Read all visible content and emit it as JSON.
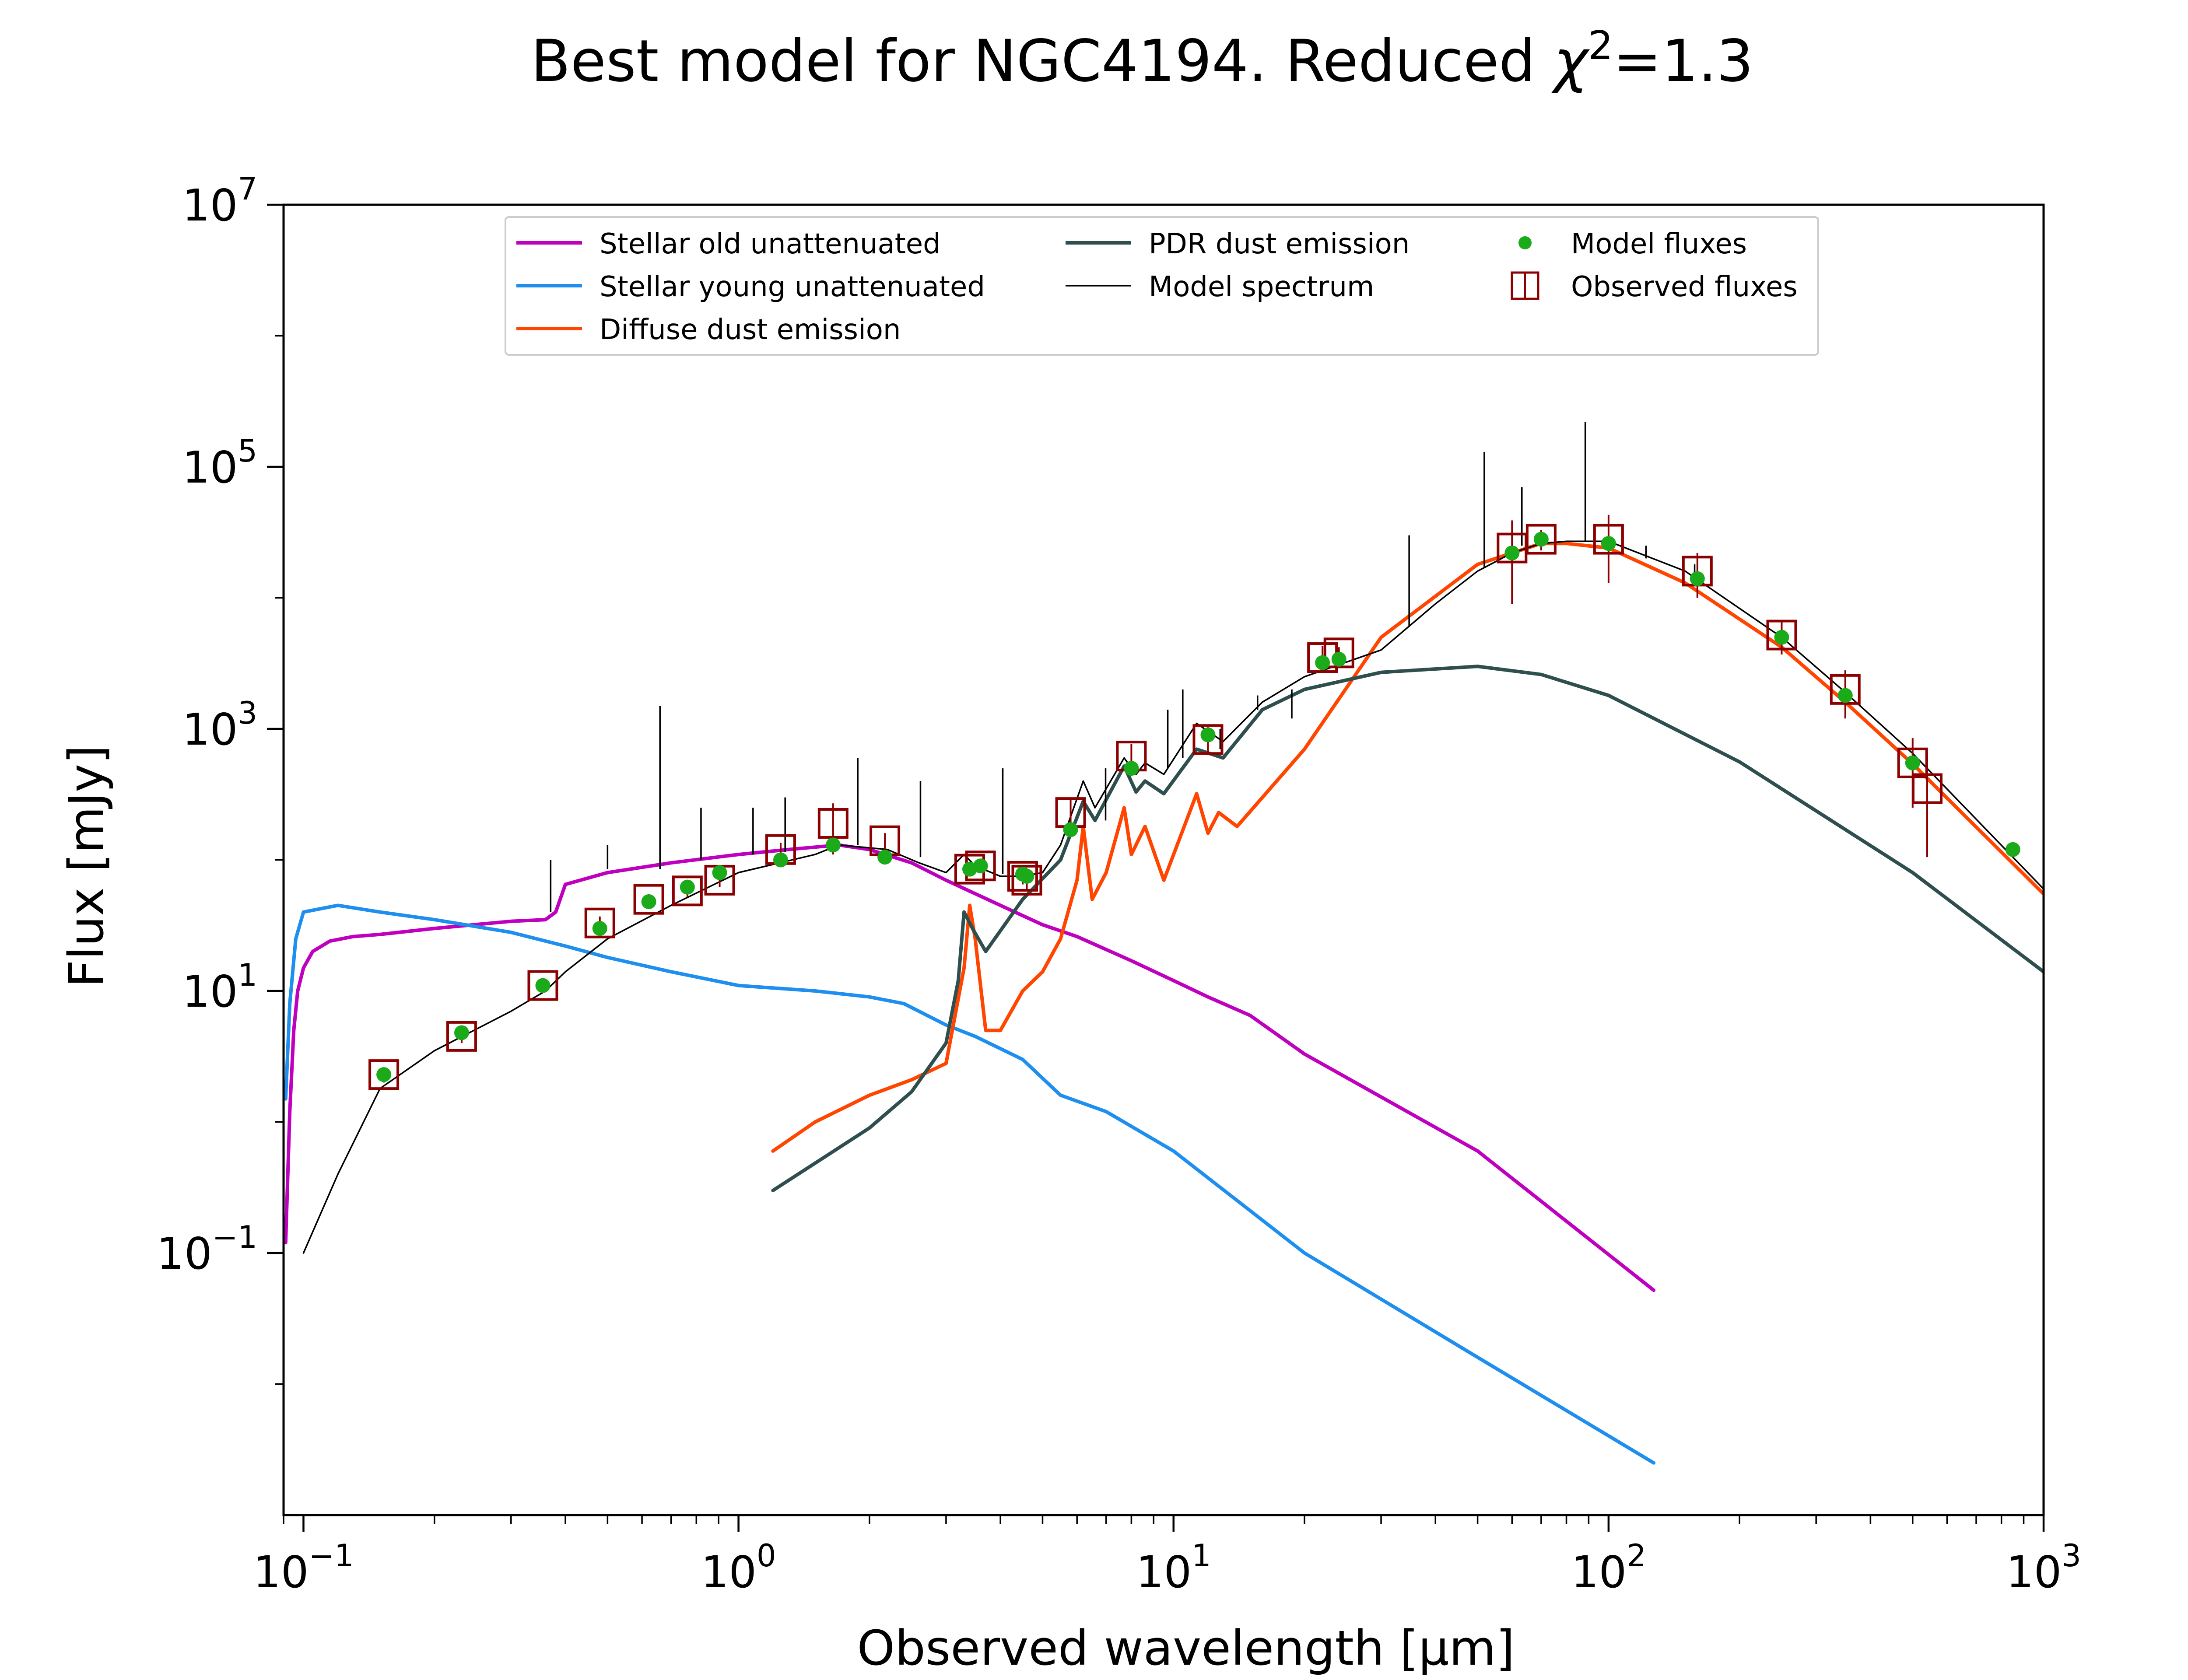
{
  "chart_data": {
    "type": "line",
    "title": "Best model for NGC4194. Reduced χ²=1.3",
    "title_parts": {
      "main": "Best model for NGC4194. Reduced ",
      "chi": "χ",
      "sup": "2",
      "rest": "=1.3"
    },
    "xlabel": "Observed wavelength [μm]",
    "ylabel": "Flux [mJy]",
    "x_scale": "log",
    "y_scale": "log",
    "xlim": [
      0.09,
      1000
    ],
    "ylim": [
      0.001,
      10000000
    ],
    "x_ticks": [
      {
        "base": "10",
        "exp": "−1",
        "value": 0.1
      },
      {
        "base": "10",
        "exp": "0",
        "value": 1
      },
      {
        "base": "10",
        "exp": "1",
        "value": 10
      },
      {
        "base": "10",
        "exp": "2",
        "value": 100
      },
      {
        "base": "10",
        "exp": "3",
        "value": 1000
      }
    ],
    "y_ticks": [
      {
        "base": "10",
        "exp": "−1",
        "value": 0.1
      },
      {
        "base": "10",
        "exp": "1",
        "value": 10
      },
      {
        "base": "10",
        "exp": "3",
        "value": 1000
      },
      {
        "base": "10",
        "exp": "5",
        "value": 100000
      },
      {
        "base": "10",
        "exp": "7",
        "value": 10000000
      }
    ],
    "grid": false,
    "legend_position": "top-center",
    "series": [
      {
        "name": "Stellar old unattenuated",
        "kind": "line",
        "color": "#bf00bf",
        "points": [
          [
            0.091,
            0.12
          ],
          [
            0.093,
            1.2
          ],
          [
            0.095,
            5
          ],
          [
            0.097,
            10
          ],
          [
            0.1,
            15
          ],
          [
            0.105,
            20
          ],
          [
            0.115,
            24
          ],
          [
            0.13,
            26
          ],
          [
            0.15,
            27
          ],
          [
            0.2,
            30
          ],
          [
            0.3,
            34
          ],
          [
            0.36,
            35
          ],
          [
            0.38,
            40
          ],
          [
            0.4,
            65
          ],
          [
            0.5,
            80
          ],
          [
            0.7,
            95
          ],
          [
            1.0,
            110
          ],
          [
            1.3,
            120
          ],
          [
            1.7,
            130
          ],
          [
            2.0,
            120
          ],
          [
            2.5,
            95
          ],
          [
            3.0,
            70
          ],
          [
            4.0,
            45
          ],
          [
            5.0,
            32
          ],
          [
            6.0,
            26
          ],
          [
            8.0,
            17
          ],
          [
            10.0,
            12
          ],
          [
            12.0,
            9
          ],
          [
            15.0,
            6.5
          ],
          [
            20.0,
            3.3
          ],
          [
            50.0,
            0.6
          ],
          [
            127,
            0.052
          ]
        ]
      },
      {
        "name": "Stellar young unattenuated",
        "kind": "line",
        "color": "#1f8fef",
        "points": [
          [
            0.091,
            1.5
          ],
          [
            0.093,
            8
          ],
          [
            0.096,
            25
          ],
          [
            0.1,
            40
          ],
          [
            0.12,
            45
          ],
          [
            0.15,
            40
          ],
          [
            0.2,
            35
          ],
          [
            0.3,
            28
          ],
          [
            0.4,
            22
          ],
          [
            0.5,
            18
          ],
          [
            0.7,
            14
          ],
          [
            1.0,
            11
          ],
          [
            1.5,
            10
          ],
          [
            2.0,
            9
          ],
          [
            2.4,
            8
          ],
          [
            3.0,
            5.5
          ],
          [
            3.5,
            4.5
          ],
          [
            4.5,
            3
          ],
          [
            5.5,
            1.6
          ],
          [
            7.0,
            1.2
          ],
          [
            10.0,
            0.6
          ],
          [
            20.0,
            0.1
          ],
          [
            50.0,
            0.016
          ],
          [
            127,
            0.0025
          ]
        ]
      },
      {
        "name": "Diffuse dust emission",
        "kind": "line",
        "color": "#ff4500",
        "points": [
          [
            1.2,
            0.6
          ],
          [
            1.5,
            1.0
          ],
          [
            2.0,
            1.6
          ],
          [
            2.5,
            2.1
          ],
          [
            3.0,
            2.8
          ],
          [
            3.3,
            15
          ],
          [
            3.4,
            45
          ],
          [
            3.5,
            25
          ],
          [
            3.7,
            5
          ],
          [
            4.0,
            5
          ],
          [
            4.5,
            10
          ],
          [
            5.0,
            14
          ],
          [
            5.5,
            25
          ],
          [
            6.0,
            70
          ],
          [
            6.2,
            180
          ],
          [
            6.5,
            50
          ],
          [
            7.0,
            80
          ],
          [
            7.7,
            250
          ],
          [
            8.0,
            110
          ],
          [
            8.6,
            180
          ],
          [
            9.5,
            70
          ],
          [
            11.3,
            320
          ],
          [
            12.0,
            160
          ],
          [
            12.7,
            230
          ],
          [
            14.0,
            180
          ],
          [
            20.0,
            700
          ],
          [
            30.0,
            5000
          ],
          [
            50.0,
            18000
          ],
          [
            70.0,
            26000
          ],
          [
            80.0,
            26000
          ],
          [
            100.0,
            24000
          ],
          [
            150.0,
            13000
          ],
          [
            250.0,
            4200
          ],
          [
            350.0,
            1600
          ],
          [
            500.0,
            540
          ],
          [
            1000.0,
            55
          ]
        ]
      },
      {
        "name": "PDR dust emission",
        "kind": "line",
        "color": "#2f4f4f",
        "points": [
          [
            1.2,
            0.3
          ],
          [
            2.0,
            0.9
          ],
          [
            2.5,
            1.7
          ],
          [
            3.0,
            4
          ],
          [
            3.2,
            12
          ],
          [
            3.3,
            40
          ],
          [
            3.45,
            30
          ],
          [
            3.7,
            20
          ],
          [
            4.5,
            50
          ],
          [
            5.5,
            100
          ],
          [
            6.2,
            280
          ],
          [
            6.6,
            200
          ],
          [
            7.7,
            520
          ],
          [
            8.2,
            330
          ],
          [
            8.6,
            400
          ],
          [
            9.5,
            320
          ],
          [
            11.3,
            700
          ],
          [
            13.0,
            600
          ],
          [
            16.0,
            1400
          ],
          [
            20.0,
            2000
          ],
          [
            30.0,
            2700
          ],
          [
            50.0,
            3000
          ],
          [
            70.0,
            2600
          ],
          [
            100.0,
            1800
          ],
          [
            200.0,
            560
          ],
          [
            500.0,
            80
          ],
          [
            1000.0,
            14
          ]
        ]
      },
      {
        "name": "Model spectrum",
        "kind": "line",
        "color": "#000000",
        "points": [
          [
            0.1,
            0.1
          ],
          [
            0.12,
            0.4
          ],
          [
            0.15,
            1.8
          ],
          [
            0.2,
            3.5
          ],
          [
            0.3,
            7
          ],
          [
            0.36,
            10
          ],
          [
            0.4,
            14
          ],
          [
            0.5,
            25
          ],
          [
            0.7,
            45
          ],
          [
            1.0,
            80
          ],
          [
            1.5,
            110
          ],
          [
            1.7,
            130
          ],
          [
            2.2,
            120
          ],
          [
            2.6,
            95
          ],
          [
            3.0,
            80
          ],
          [
            3.3,
            110
          ],
          [
            3.5,
            90
          ],
          [
            4.0,
            75
          ],
          [
            4.5,
            75
          ],
          [
            5.0,
            80
          ],
          [
            5.5,
            130
          ],
          [
            6.2,
            400
          ],
          [
            6.6,
            250
          ],
          [
            7.7,
            600
          ],
          [
            8.2,
            450
          ],
          [
            8.6,
            550
          ],
          [
            9.5,
            450
          ],
          [
            11.3,
            1100
          ],
          [
            13.0,
            800
          ],
          [
            16.0,
            1600
          ],
          [
            20.0,
            2500
          ],
          [
            30.0,
            4000
          ],
          [
            40.0,
            9000
          ],
          [
            50.0,
            16000
          ],
          [
            60.0,
            22000
          ],
          [
            70.0,
            26000
          ],
          [
            80.0,
            27000
          ],
          [
            100.0,
            27000
          ],
          [
            150.0,
            16000
          ],
          [
            250.0,
            5000
          ],
          [
            350.0,
            1900
          ],
          [
            500.0,
            650
          ],
          [
            1000.0,
            60
          ]
        ],
        "emission_lines": [
          [
            0.37,
            40,
            100
          ],
          [
            0.5,
            85,
            130
          ],
          [
            0.66,
            85,
            1500
          ],
          [
            0.82,
            100,
            250
          ],
          [
            1.08,
            110,
            250
          ],
          [
            1.28,
            115,
            300
          ],
          [
            1.88,
            130,
            600
          ],
          [
            2.62,
            105,
            400
          ],
          [
            4.05,
            78,
            500
          ],
          [
            6.98,
            200,
            500
          ],
          [
            9.7,
            500,
            1400
          ],
          [
            10.5,
            600,
            2000
          ],
          [
            12.8,
            700,
            1000
          ],
          [
            15.6,
            1400,
            1800
          ],
          [
            18.7,
            2000,
            1200
          ],
          [
            34.8,
            6000,
            30000
          ],
          [
            51.8,
            17000,
            130000
          ],
          [
            63.2,
            25000,
            70000
          ],
          [
            88.4,
            27000,
            220000
          ],
          [
            121.9,
            20000,
            25000
          ],
          [
            157.7,
            14000,
            18000
          ]
        ]
      },
      {
        "name": "Model fluxes",
        "kind": "scatter",
        "color": "#1aaa1a",
        "points": [
          [
            0.153,
            2.3
          ],
          [
            0.231,
            4.8
          ],
          [
            0.355,
            11
          ],
          [
            0.48,
            30
          ],
          [
            0.622,
            48
          ],
          [
            0.763,
            62
          ],
          [
            0.905,
            80
          ],
          [
            1.25,
            100
          ],
          [
            1.65,
            130
          ],
          [
            2.17,
            105
          ],
          [
            3.4,
            85
          ],
          [
            3.6,
            90
          ],
          [
            4.5,
            78
          ],
          [
            4.6,
            75
          ],
          [
            5.8,
            170
          ],
          [
            8.0,
            500
          ],
          [
            12.0,
            900
          ],
          [
            22.0,
            3200
          ],
          [
            24.0,
            3400
          ],
          [
            60.0,
            22000
          ],
          [
            70.0,
            28000
          ],
          [
            100.0,
            26000
          ],
          [
            160.0,
            14000
          ],
          [
            250.0,
            5000
          ],
          [
            350.0,
            1800
          ],
          [
            500.0,
            550
          ],
          [
            850.0,
            120
          ]
        ]
      },
      {
        "name": "Observed fluxes",
        "kind": "errorbar",
        "color": "#8b0000",
        "points": [
          [
            0.153,
            2.3,
            0.3
          ],
          [
            0.231,
            4.5,
            0.5
          ],
          [
            0.355,
            11,
            1
          ],
          [
            0.48,
            33,
            4
          ],
          [
            0.622,
            50,
            5
          ],
          [
            0.763,
            58,
            6
          ],
          [
            0.905,
            70,
            8
          ],
          [
            1.25,
            120,
            15
          ],
          [
            1.65,
            190,
            80
          ],
          [
            2.17,
            140,
            20
          ],
          [
            3.4,
            85,
            10
          ],
          [
            3.6,
            90,
            10
          ],
          [
            4.5,
            75,
            10
          ],
          [
            4.6,
            70,
            10
          ],
          [
            5.8,
            230,
            60
          ],
          [
            8.0,
            620,
            150
          ],
          [
            12.0,
            830,
            200
          ],
          [
            22.0,
            3500,
            800
          ],
          [
            24.0,
            3800,
            400
          ],
          [
            60.0,
            24000,
            15000
          ],
          [
            70.0,
            28000,
            5000
          ],
          [
            100.0,
            28000,
            15000
          ],
          [
            160.0,
            16000,
            6000
          ],
          [
            250.0,
            5200,
            1500
          ],
          [
            350.0,
            2000,
            800
          ],
          [
            500.0,
            550,
            300
          ],
          [
            540.0,
            350,
            300
          ]
        ]
      }
    ]
  }
}
